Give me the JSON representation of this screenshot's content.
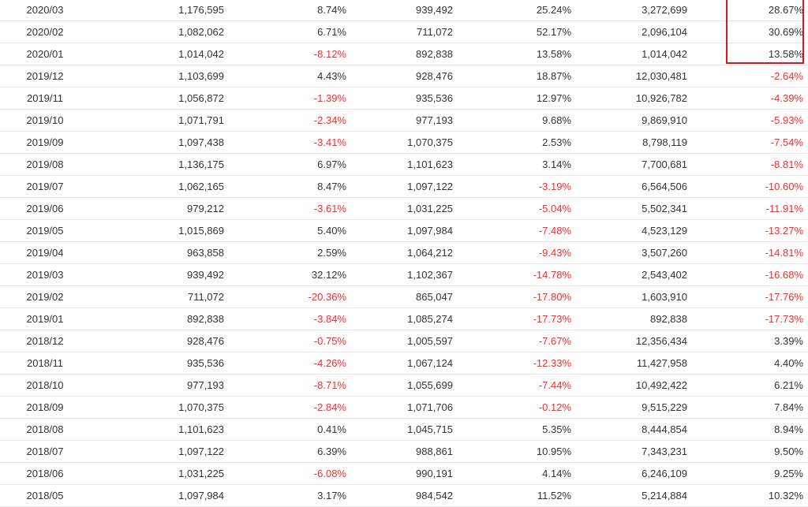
{
  "table": {
    "rows": [
      {
        "month": "2020/03",
        "v1": "1,176,595",
        "p1": "8.74%",
        "v2": "939,492",
        "p2": "25.24%",
        "v3": "3,272,699",
        "p3": "28.67%"
      },
      {
        "month": "2020/02",
        "v1": "1,082,062",
        "p1": "6.71%",
        "v2": "711,072",
        "p2": "52.17%",
        "v3": "2,096,104",
        "p3": "30.69%"
      },
      {
        "month": "2020/01",
        "v1": "1,014,042",
        "p1": "-8.12%",
        "v2": "892,838",
        "p2": "13.58%",
        "v3": "1,014,042",
        "p3": "13.58%"
      },
      {
        "month": "2019/12",
        "v1": "1,103,699",
        "p1": "4.43%",
        "v2": "928,476",
        "p2": "18.87%",
        "v3": "12,030,481",
        "p3": "-2.64%"
      },
      {
        "month": "2019/11",
        "v1": "1,056,872",
        "p1": "-1.39%",
        "v2": "935,536",
        "p2": "12.97%",
        "v3": "10,926,782",
        "p3": "-4.39%"
      },
      {
        "month": "2019/10",
        "v1": "1,071,791",
        "p1": "-2.34%",
        "v2": "977,193",
        "p2": "9.68%",
        "v3": "9,869,910",
        "p3": "-5.93%"
      },
      {
        "month": "2019/09",
        "v1": "1,097,438",
        "p1": "-3.41%",
        "v2": "1,070,375",
        "p2": "2.53%",
        "v3": "8,798,119",
        "p3": "-7.54%"
      },
      {
        "month": "2019/08",
        "v1": "1,136,175",
        "p1": "6.97%",
        "v2": "1,101,623",
        "p2": "3.14%",
        "v3": "7,700,681",
        "p3": "-8.81%"
      },
      {
        "month": "2019/07",
        "v1": "1,062,165",
        "p1": "8.47%",
        "v2": "1,097,122",
        "p2": "-3.19%",
        "v3": "6,564,506",
        "p3": "-10.60%"
      },
      {
        "month": "2019/06",
        "v1": "979,212",
        "p1": "-3.61%",
        "v2": "1,031,225",
        "p2": "-5.04%",
        "v3": "5,502,341",
        "p3": "-11.91%"
      },
      {
        "month": "2019/05",
        "v1": "1,015,869",
        "p1": "5.40%",
        "v2": "1,097,984",
        "p2": "-7.48%",
        "v3": "4,523,129",
        "p3": "-13.27%"
      },
      {
        "month": "2019/04",
        "v1": "963,858",
        "p1": "2.59%",
        "v2": "1,064,212",
        "p2": "-9.43%",
        "v3": "3,507,260",
        "p3": "-14.81%"
      },
      {
        "month": "2019/03",
        "v1": "939,492",
        "p1": "32.12%",
        "v2": "1,102,367",
        "p2": "-14.78%",
        "v3": "2,543,402",
        "p3": "-16.68%"
      },
      {
        "month": "2019/02",
        "v1": "711,072",
        "p1": "-20.36%",
        "v2": "865,047",
        "p2": "-17.80%",
        "v3": "1,603,910",
        "p3": "-17.76%"
      },
      {
        "month": "2019/01",
        "v1": "892,838",
        "p1": "-3.84%",
        "v2": "1,085,274",
        "p2": "-17.73%",
        "v3": "892,838",
        "p3": "-17.73%"
      },
      {
        "month": "2018/12",
        "v1": "928,476",
        "p1": "-0.75%",
        "v2": "1,005,597",
        "p2": "-7.67%",
        "v3": "12,356,434",
        "p3": "3.39%"
      },
      {
        "month": "2018/11",
        "v1": "935,536",
        "p1": "-4.26%",
        "v2": "1,067,124",
        "p2": "-12.33%",
        "v3": "11,427,958",
        "p3": "4.40%"
      },
      {
        "month": "2018/10",
        "v1": "977,193",
        "p1": "-8.71%",
        "v2": "1,055,699",
        "p2": "-7.44%",
        "v3": "10,492,422",
        "p3": "6.21%"
      },
      {
        "month": "2018/09",
        "v1": "1,070,375",
        "p1": "-2.84%",
        "v2": "1,071,706",
        "p2": "-0.12%",
        "v3": "9,515,229",
        "p3": "7.84%"
      },
      {
        "month": "2018/08",
        "v1": "1,101,623",
        "p1": "0.41%",
        "v2": "1,045,715",
        "p2": "5.35%",
        "v3": "8,444,854",
        "p3": "8.94%"
      },
      {
        "month": "2018/07",
        "v1": "1,097,122",
        "p1": "6.39%",
        "v2": "988,861",
        "p2": "10.95%",
        "v3": "7,343,231",
        "p3": "9.50%"
      },
      {
        "month": "2018/06",
        "v1": "1,031,225",
        "p1": "-6.08%",
        "v2": "990,191",
        "p2": "4.14%",
        "v3": "6,246,109",
        "p3": "9.25%"
      },
      {
        "month": "2018/05",
        "v1": "1,097,984",
        "p1": "3.17%",
        "v2": "984,542",
        "p2": "11.52%",
        "v3": "5,214,884",
        "p3": "10.32%"
      }
    ]
  },
  "colors": {
    "negative": "#ff2a2a",
    "text": "#333333",
    "highlight_border": "#e0141e"
  }
}
